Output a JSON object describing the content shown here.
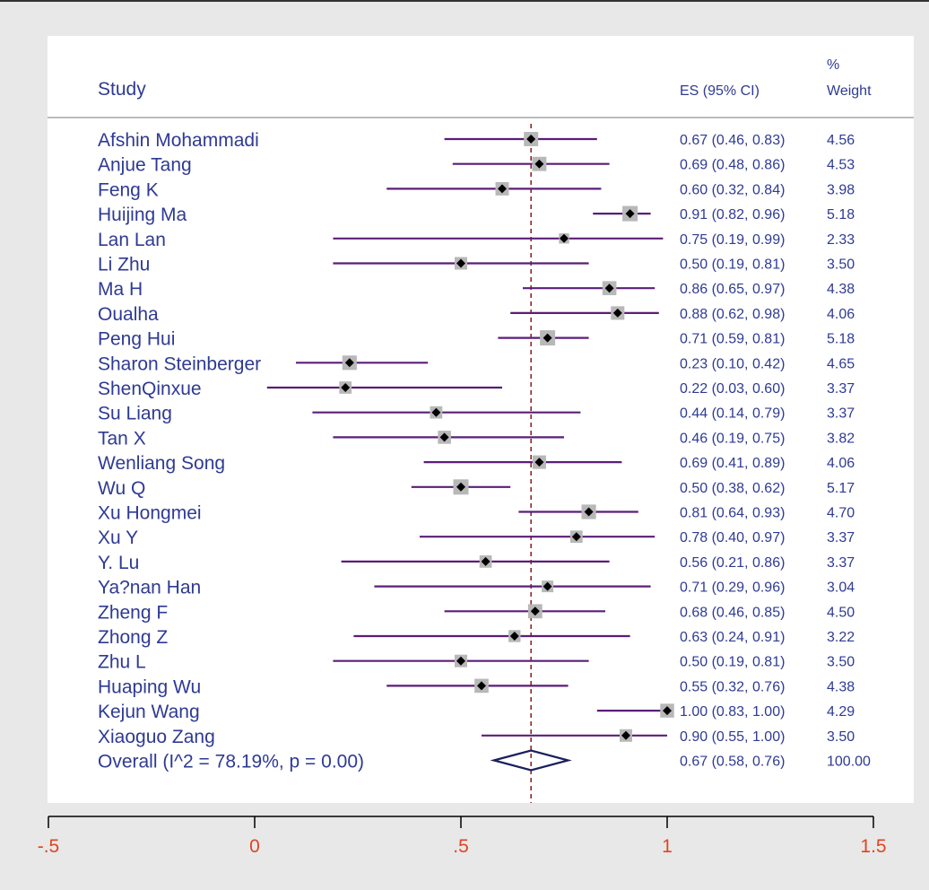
{
  "chart_data": {
    "type": "forest",
    "headers": {
      "study": "Study",
      "es": "ES (95% CI)",
      "weight_line1": "%",
      "weight_line2": "Weight"
    },
    "studies": [
      {
        "name": "Afshin Mohammadi",
        "es": 0.67,
        "lo": 0.46,
        "hi": 0.83,
        "es_text": "0.67 (0.46, 0.83)",
        "weight": "4.56"
      },
      {
        "name": "Anjue Tang",
        "es": 0.69,
        "lo": 0.48,
        "hi": 0.86,
        "es_text": "0.69 (0.48, 0.86)",
        "weight": "4.53"
      },
      {
        "name": "Feng K",
        "es": 0.6,
        "lo": 0.32,
        "hi": 0.84,
        "es_text": "0.60 (0.32, 0.84)",
        "weight": "3.98"
      },
      {
        "name": "Huijing Ma",
        "es": 0.91,
        "lo": 0.82,
        "hi": 0.96,
        "es_text": "0.91 (0.82, 0.96)",
        "weight": "5.18"
      },
      {
        "name": "Lan Lan",
        "es": 0.75,
        "lo": 0.19,
        "hi": 0.99,
        "es_text": "0.75 (0.19, 0.99)",
        "weight": "2.33"
      },
      {
        "name": "Li Zhu",
        "es": 0.5,
        "lo": 0.19,
        "hi": 0.81,
        "es_text": "0.50 (0.19, 0.81)",
        "weight": "3.50"
      },
      {
        "name": "Ma H",
        "es": 0.86,
        "lo": 0.65,
        "hi": 0.97,
        "es_text": "0.86 (0.65, 0.97)",
        "weight": "4.38"
      },
      {
        "name": "Oualha",
        "es": 0.88,
        "lo": 0.62,
        "hi": 0.98,
        "es_text": "0.88 (0.62, 0.98)",
        "weight": "4.06"
      },
      {
        "name": "Peng Hui",
        "es": 0.71,
        "lo": 0.59,
        "hi": 0.81,
        "es_text": "0.71 (0.59, 0.81)",
        "weight": "5.18"
      },
      {
        "name": "Sharon Steinberger",
        "es": 0.23,
        "lo": 0.1,
        "hi": 0.42,
        "es_text": "0.23 (0.10, 0.42)",
        "weight": "4.65"
      },
      {
        "name": "ShenQinxue",
        "es": 0.22,
        "lo": 0.03,
        "hi": 0.6,
        "es_text": "0.22 (0.03, 0.60)",
        "weight": "3.37"
      },
      {
        "name": "Su Liang",
        "es": 0.44,
        "lo": 0.14,
        "hi": 0.79,
        "es_text": "0.44 (0.14, 0.79)",
        "weight": "3.37"
      },
      {
        "name": "Tan X",
        "es": 0.46,
        "lo": 0.19,
        "hi": 0.75,
        "es_text": "0.46 (0.19, 0.75)",
        "weight": "3.82"
      },
      {
        "name": "Wenliang Song",
        "es": 0.69,
        "lo": 0.41,
        "hi": 0.89,
        "es_text": "0.69 (0.41, 0.89)",
        "weight": "4.06"
      },
      {
        "name": "Wu Q",
        "es": 0.5,
        "lo": 0.38,
        "hi": 0.62,
        "es_text": "0.50 (0.38, 0.62)",
        "weight": "5.17"
      },
      {
        "name": "Xu Hongmei",
        "es": 0.81,
        "lo": 0.64,
        "hi": 0.93,
        "es_text": "0.81 (0.64, 0.93)",
        "weight": "4.70"
      },
      {
        "name": "Xu Y",
        "es": 0.78,
        "lo": 0.4,
        "hi": 0.97,
        "es_text": "0.78 (0.40, 0.97)",
        "weight": "3.37"
      },
      {
        "name": "Y. Lu",
        "es": 0.56,
        "lo": 0.21,
        "hi": 0.86,
        "es_text": "0.56 (0.21, 0.86)",
        "weight": "3.37"
      },
      {
        "name": "Ya?nan Han",
        "es": 0.71,
        "lo": 0.29,
        "hi": 0.96,
        "es_text": "0.71 (0.29, 0.96)",
        "weight": "3.04"
      },
      {
        "name": "Zheng F",
        "es": 0.68,
        "lo": 0.46,
        "hi": 0.85,
        "es_text": "0.68 (0.46, 0.85)",
        "weight": "4.50"
      },
      {
        "name": "Zhong Z",
        "es": 0.63,
        "lo": 0.24,
        "hi": 0.91,
        "es_text": "0.63 (0.24, 0.91)",
        "weight": "3.22"
      },
      {
        "name": "Zhu   L",
        "es": 0.5,
        "lo": 0.19,
        "hi": 0.81,
        "es_text": "0.50 (0.19, 0.81)",
        "weight": "3.50"
      },
      {
        "name": "Huaping Wu",
        "es": 0.55,
        "lo": 0.32,
        "hi": 0.76,
        "es_text": "0.55 (0.32, 0.76)",
        "weight": "4.38"
      },
      {
        "name": "Kejun Wang",
        "es": 1.0,
        "lo": 0.83,
        "hi": 1.0,
        "es_text": "1.00 (0.83, 1.00)",
        "weight": "4.29"
      },
      {
        "name": "Xiaoguo Zang",
        "es": 0.9,
        "lo": 0.55,
        "hi": 1.0,
        "es_text": "0.90 (0.55, 1.00)",
        "weight": "3.50"
      }
    ],
    "overall": {
      "label": "Overall  (I^2 = 78.19%, p = 0.00)",
      "es": 0.67,
      "lo": 0.58,
      "hi": 0.76,
      "es_text": "0.67 (0.58, 0.76)",
      "weight": "100.00"
    },
    "xlim": [
      -0.5,
      1.5
    ],
    "xticks": [
      -0.5,
      0,
      0.5,
      1,
      1.5
    ],
    "xtick_labels": [
      "-.5",
      "0",
      ".5",
      "1",
      "1.5"
    ],
    "reference_line": 0.67,
    "colors": {
      "text": "#2e3a94",
      "ci_line": "#5a1e78",
      "weight_box": "#b8b8b8",
      "point": "#000000",
      "reference_line": "#8b2a2a",
      "diamond": "#1b1f5e",
      "axis_ticks": "#e0451f",
      "background": "#e8e8e8",
      "panel": "#ffffff"
    }
  }
}
